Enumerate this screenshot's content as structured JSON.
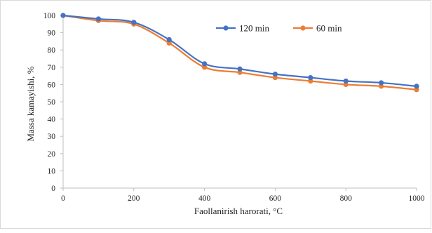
{
  "chart_data": {
    "type": "line",
    "title": "",
    "xlabel": "Faollanirish harorati, °C",
    "ylabel": "Massa kamayishi, %",
    "xlim": [
      0,
      1000
    ],
    "ylim": [
      0,
      100
    ],
    "x_ticks": [
      0,
      200,
      400,
      600,
      800,
      1000
    ],
    "y_ticks": [
      0,
      10,
      20,
      30,
      40,
      50,
      60,
      70,
      80,
      90,
      100
    ],
    "grid": false,
    "legend_position": "top-right",
    "x": [
      0,
      100,
      200,
      300,
      400,
      500,
      600,
      700,
      800,
      900,
      1000
    ],
    "series": [
      {
        "name": "120 min",
        "color": "#4472C4",
        "values": [
          100,
          98,
          96,
          86,
          72,
          69,
          66,
          64,
          62,
          61,
          59
        ]
      },
      {
        "name": "60 min",
        "color": "#ED7D31",
        "values": [
          100,
          97,
          95,
          84,
          70,
          67,
          64,
          62,
          60,
          59,
          57
        ]
      }
    ]
  }
}
